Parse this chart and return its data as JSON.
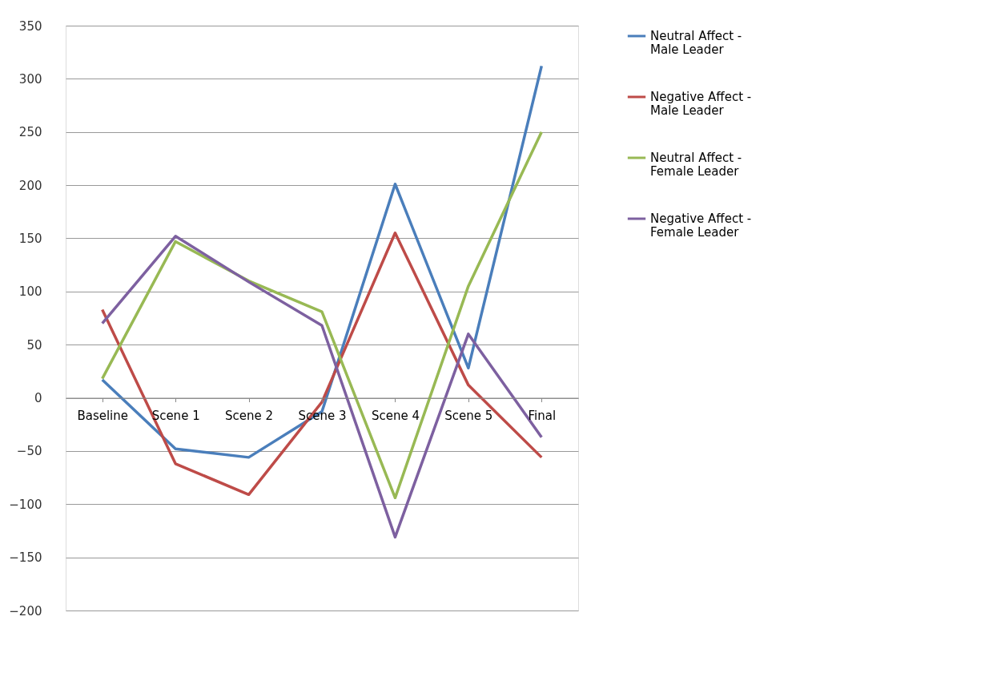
{
  "chart_data": {
    "type": "line",
    "categories": [
      "Baseline",
      "Scene 1",
      "Scene 2",
      "Scene 3",
      "Scene 4",
      "Scene 5",
      "Final"
    ],
    "series": [
      {
        "name": "Neutral Affect - Male Leader",
        "color": "#4a7ebb",
        "values": [
          17,
          -48,
          -56,
          -13,
          201,
          28,
          312
        ]
      },
      {
        "name": "Negative Affect - Male Leader",
        "color": "#be4b48",
        "values": [
          83,
          -62,
          -91,
          -4,
          155,
          12,
          -56
        ]
      },
      {
        "name": "Neutral Affect - Female Leader",
        "color": "#98b954",
        "values": [
          18,
          147,
          110,
          81,
          -94,
          105,
          250
        ]
      },
      {
        "name": "Negative Affect - Female  Leader",
        "color": "#7d60a0",
        "values": [
          70,
          152,
          109,
          68,
          -131,
          60,
          -37
        ]
      }
    ],
    "ylim": [
      -200,
      350
    ],
    "yticks": [
      -200,
      -150,
      -100,
      -50,
      0,
      50,
      100,
      150,
      200,
      250,
      300,
      350
    ],
    "grid": "y",
    "legend": "right",
    "marker": "none",
    "line_style": "solid"
  }
}
